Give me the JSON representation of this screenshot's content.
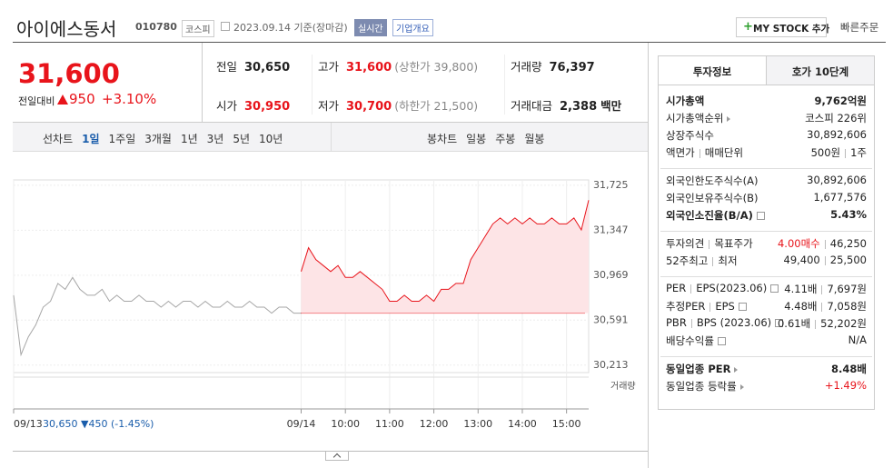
{
  "header": {
    "name": "아이에스동서",
    "code": "010780",
    "market": "코스피",
    "date": "2023.09.14 기준(장마감)",
    "realtime": "실시간",
    "company": "기업개요",
    "mystock": "MY STOCK 추가",
    "quick_order": "빠른주문"
  },
  "quote": {
    "price": "31,600",
    "change_label": "전일대비",
    "change": "950",
    "change_pct": "+3.10%",
    "items": [
      {
        "label": "전일",
        "value": "30,650"
      },
      {
        "label": "고가",
        "value": "31,600",
        "note": "(상한가 39,800)"
      },
      {
        "label": "거래량",
        "value": "76,397"
      },
      {
        "label": "시가",
        "value": "30,950"
      },
      {
        "label": "저가",
        "value": "30,700",
        "note": "(하한가 21,500)"
      },
      {
        "label": "거래대금",
        "value": "2,388",
        "unit": "백만"
      }
    ]
  },
  "tabs": {
    "line_label": "선차트",
    "line": [
      "1일",
      "1주일",
      "3개월",
      "1년",
      "3년",
      "5년",
      "10년"
    ],
    "candle_label": "봉차트",
    "candle": [
      "일봉",
      "주봉",
      "월봉"
    ]
  },
  "chart_data": {
    "type": "line",
    "series": [
      {
        "color": "#a6a6a6",
        "x": [
          0,
          10,
          20,
          30,
          40,
          50,
          60,
          70,
          80,
          90,
          100,
          110,
          120,
          130,
          140,
          150,
          160,
          170,
          180,
          190,
          200,
          210,
          220,
          230,
          240,
          250,
          260,
          270,
          280,
          290,
          300,
          310,
          320,
          330,
          340,
          350,
          360,
          370,
          380,
          390
        ],
        "values": [
          30800,
          30300,
          30450,
          30550,
          30700,
          30750,
          30900,
          30850,
          30950,
          30850,
          30800,
          30800,
          30850,
          30750,
          30800,
          30750,
          30750,
          30800,
          30750,
          30750,
          30700,
          30750,
          30700,
          30750,
          30750,
          30700,
          30750,
          30700,
          30700,
          30750,
          30700,
          30700,
          30750,
          30700,
          30700,
          30650,
          30700,
          30700,
          30650,
          30650
        ]
      },
      {
        "color": "#e8141b",
        "fill": "#fde4e6",
        "x": [
          390,
          400,
          410,
          420,
          430,
          440,
          450,
          460,
          470,
          480,
          490,
          500,
          510,
          520,
          530,
          540,
          550,
          560,
          570,
          580,
          590,
          600,
          610,
          620,
          630,
          640,
          650,
          660,
          670,
          680,
          690,
          700,
          710,
          720,
          730,
          740,
          750,
          760,
          770,
          780
        ],
        "values": [
          31000,
          31200,
          31100,
          31050,
          31000,
          31050,
          30950,
          30950,
          31000,
          30950,
          30900,
          30850,
          30750,
          30750,
          30800,
          30750,
          30750,
          30800,
          30750,
          30850,
          30850,
          30900,
          30900,
          31100,
          31200,
          31300,
          31400,
          31450,
          31400,
          31450,
          31400,
          31450,
          31400,
          31400,
          31450,
          31400,
          31400,
          31450,
          31350,
          31600
        ]
      }
    ],
    "base_value": 30650,
    "xlim": [
      0,
      780
    ],
    "xticks": [
      {
        "value": 0,
        "label": "09/13"
      },
      {
        "value": 390,
        "label": "09/14"
      },
      {
        "value": 450,
        "label": "10:00"
      },
      {
        "value": 510,
        "label": "11:00"
      },
      {
        "value": 570,
        "label": "12:00"
      },
      {
        "value": 630,
        "label": "13:00"
      },
      {
        "value": 690,
        "label": "14:00"
      },
      {
        "value": 750,
        "label": "15:00"
      }
    ],
    "ylim": [
      30150,
      31770
    ],
    "yticks": [
      {
        "value": 30213,
        "label": "30,213"
      },
      {
        "value": 30591,
        "label": "30,591"
      },
      {
        "value": 30969,
        "label": "30,969"
      },
      {
        "value": 31347,
        "label": "31,347"
      },
      {
        "value": 31725,
        "label": "31,725"
      }
    ],
    "prev_summary": "30,650 ▼450 (-1.45%)",
    "volume_label": "거래량"
  },
  "info": {
    "tabs": [
      "투자정보",
      "호가 10단계"
    ],
    "groups": [
      [
        {
          "labels": [
            "시가총액"
          ],
          "values": [
            "9,762억원"
          ]
        },
        {
          "labels": [
            "시가총액순위"
          ],
          "values": [
            "코스피 226위"
          ]
        },
        {
          "labels": [
            "상장주식수"
          ],
          "values": [
            "30,892,606"
          ]
        },
        {
          "labels": [
            "액면가",
            "매매단위"
          ],
          "values": [
            "500원",
            "1주"
          ]
        }
      ],
      [
        {
          "labels": [
            "외국인한도주식수(A)"
          ],
          "values": [
            "30,892,606"
          ]
        },
        {
          "labels": [
            "외국인보유주식수(B)"
          ],
          "values": [
            "1,677,576"
          ]
        },
        {
          "labels": [
            "외국인소진율(B/A)"
          ],
          "values": [
            "5.43%"
          ]
        }
      ],
      [
        {
          "labels": [
            "투자의견",
            "목표주가"
          ],
          "values": [
            "4.00매수",
            "46,250"
          ]
        },
        {
          "labels": [
            "52주최고",
            "최저"
          ],
          "values": [
            "49,400",
            "25,500"
          ]
        }
      ],
      [
        {
          "labels": [
            "PER",
            "EPS(2023.06)"
          ],
          "values": [
            "4.11배",
            "7,697원"
          ]
        },
        {
          "labels": [
            "추정PER",
            "EPS"
          ],
          "values": [
            "4.48배",
            "7,058원"
          ]
        },
        {
          "labels": [
            "PBR",
            "BPS (2023.06)"
          ],
          "values": [
            "0.61배",
            "52,202원"
          ]
        },
        {
          "labels": [
            "배당수익률"
          ],
          "values": [
            "N/A"
          ]
        }
      ],
      [
        {
          "labels": [
            "동일업종 PER"
          ],
          "values": [
            "8.48배"
          ]
        },
        {
          "labels": [
            "동일업종 등락률"
          ],
          "values": [
            "+1.49%"
          ]
        }
      ]
    ]
  }
}
